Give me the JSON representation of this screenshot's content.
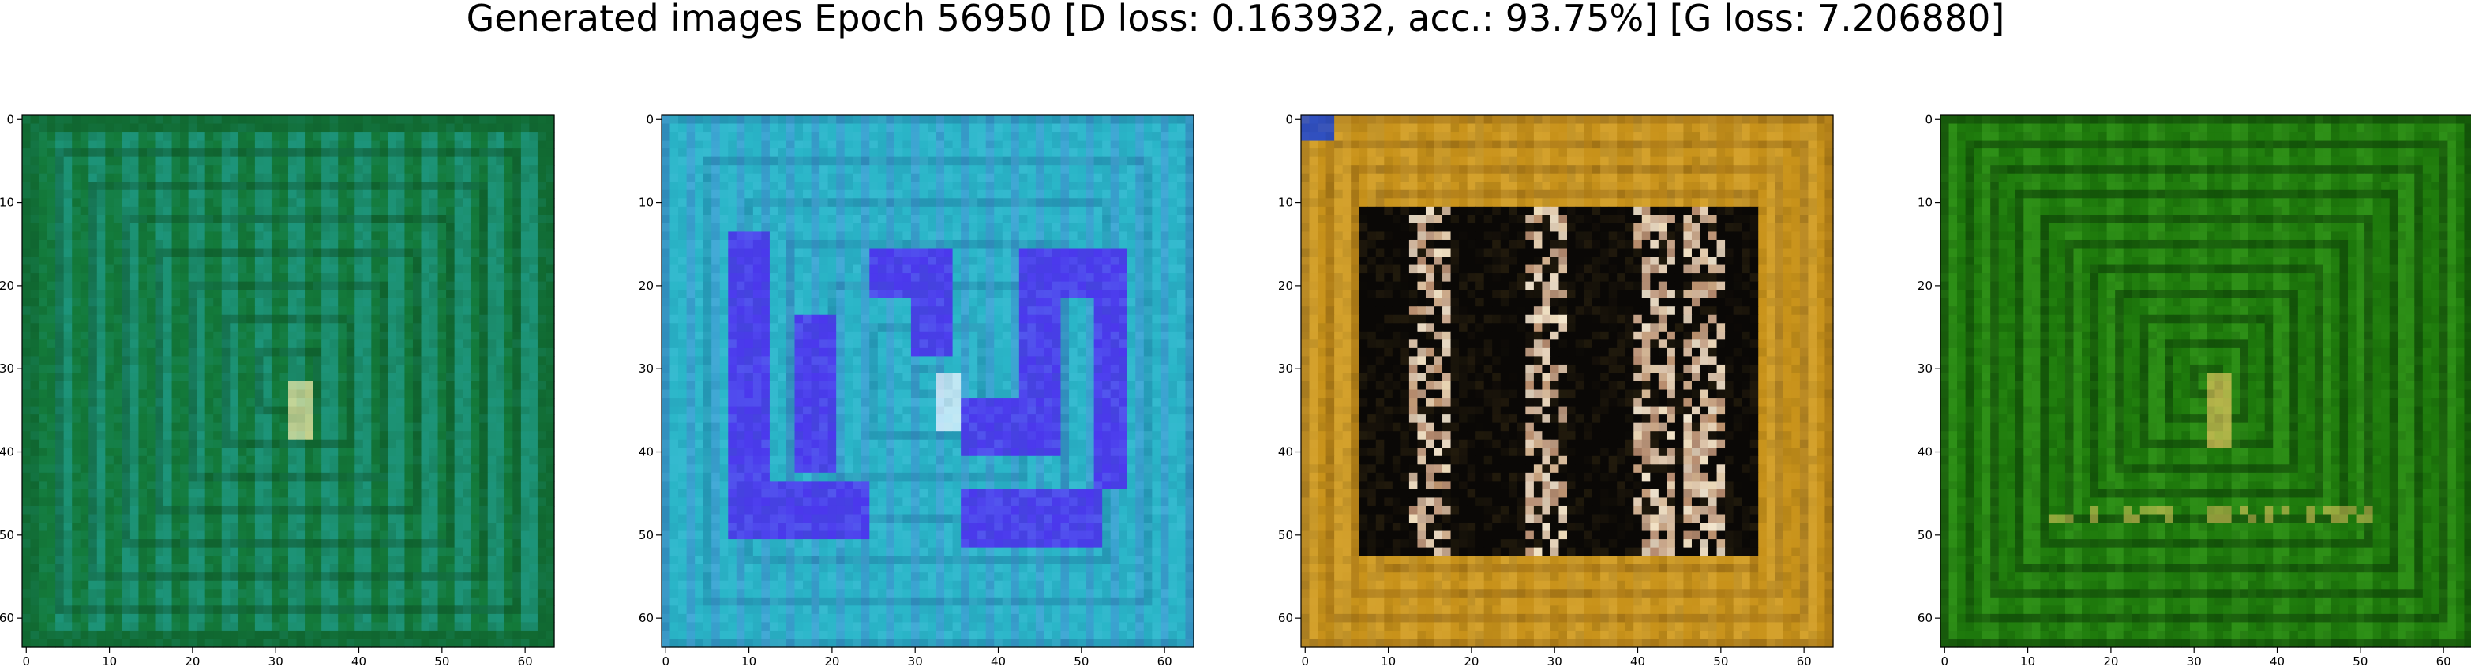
{
  "figure": {
    "title": "Generated images Epoch 56950 [D loss: 0.163932, acc.: 93.75%] [G loss: 7.206880]"
  },
  "chart_data": [
    {
      "type": "heatmap",
      "subject": "generated image 1",
      "palette": {
        "base": "#137a3a",
        "stripe": "#24a3a0",
        "dark": "#0c4a24",
        "highlight": "#f0e6a0"
      },
      "pattern": "nested-squares-vertical-stripes",
      "xlim": [
        -0.5,
        63.5
      ],
      "ylim": [
        63.5,
        -0.5
      ],
      "xticks": [
        0,
        10,
        20,
        30,
        40,
        50,
        60
      ],
      "yticks": [
        0,
        10,
        20,
        30,
        40,
        50,
        60
      ],
      "xtick_labels": [
        "0",
        "10",
        "20",
        "30",
        "40",
        "50",
        "60"
      ],
      "ytick_labels": [
        "0",
        "10",
        "20",
        "30",
        "40",
        "50",
        "60"
      ]
    },
    {
      "type": "heatmap",
      "subject": "generated image 2",
      "palette": {
        "base": "#2ab6c8",
        "stripe": "#4a8fd8",
        "dark": "#1a5a8a",
        "accent": "#4b2cf0",
        "highlight": "#e8f4ff"
      },
      "pattern": "blue-rect-shapes",
      "xlim": [
        -0.5,
        63.5
      ],
      "ylim": [
        63.5,
        -0.5
      ],
      "xticks": [
        0,
        10,
        20,
        30,
        40,
        50,
        60
      ],
      "yticks": [
        0,
        10,
        20,
        30,
        40,
        50,
        60
      ],
      "xtick_labels": [
        "0",
        "10",
        "20",
        "30",
        "40",
        "50",
        "60"
      ],
      "ytick_labels": [
        "0",
        "10",
        "20",
        "30",
        "40",
        "50",
        "60"
      ]
    },
    {
      "type": "heatmap",
      "subject": "generated image 3",
      "palette": {
        "base": "#c8921a",
        "stripe": "#e0b040",
        "dark": "#0a0806",
        "highlight": "#f2e6d0"
      },
      "pattern": "dark-center-frame",
      "xlim": [
        -0.5,
        63.5
      ],
      "ylim": [
        63.5,
        -0.5
      ],
      "xticks": [
        0,
        10,
        20,
        30,
        40,
        50,
        60
      ],
      "yticks": [
        0,
        10,
        20,
        30,
        40,
        50,
        60
      ],
      "xtick_labels": [
        "0",
        "10",
        "20",
        "30",
        "40",
        "50",
        "60"
      ],
      "ytick_labels": [
        "0",
        "10",
        "20",
        "30",
        "40",
        "50",
        "60"
      ]
    },
    {
      "type": "heatmap",
      "subject": "generated image 4",
      "palette": {
        "base": "#1e7a0c",
        "stripe": "#3aa020",
        "dark": "#0b3a06",
        "highlight": "#e8c860"
      },
      "pattern": "nested-squares-dark-green",
      "xlim": [
        -0.5,
        63.5
      ],
      "ylim": [
        63.5,
        -0.5
      ],
      "xticks": [
        0,
        10,
        20,
        30,
        40,
        50,
        60
      ],
      "yticks": [
        0,
        10,
        20,
        30,
        40,
        50,
        60
      ],
      "xtick_labels": [
        "0",
        "10",
        "20",
        "30",
        "40",
        "50",
        "60"
      ],
      "ytick_labels": [
        "0",
        "10",
        "20",
        "30",
        "40",
        "50",
        "60"
      ]
    }
  ]
}
